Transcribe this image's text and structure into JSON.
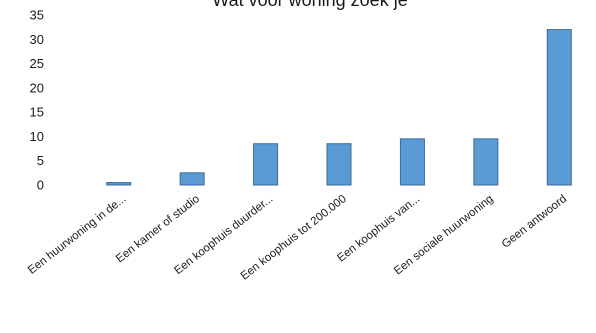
{
  "chart_data": {
    "type": "bar",
    "title": "Wat voor woning zoek je",
    "categories": [
      "Een huurwoning in de...",
      "Een kamer of studio",
      "Een koophuis duurder...",
      "Een koophuis tot 200.000",
      "Een koophuis van...",
      "Een sociale huurwoning",
      "Geen antwoord"
    ],
    "values": [
      0.5,
      2.5,
      8.5,
      8.5,
      9.5,
      9.5,
      32
    ],
    "ylim": [
      0,
      35
    ],
    "yticks": [
      0,
      5,
      10,
      15,
      20,
      25,
      30,
      35
    ],
    "xlabel": "",
    "ylabel": "",
    "grid": false,
    "legend": "none",
    "bar_color": "#5b9bd5",
    "bar_edge_color": "#3a6a9a",
    "text_color": "#1a1a1a"
  }
}
